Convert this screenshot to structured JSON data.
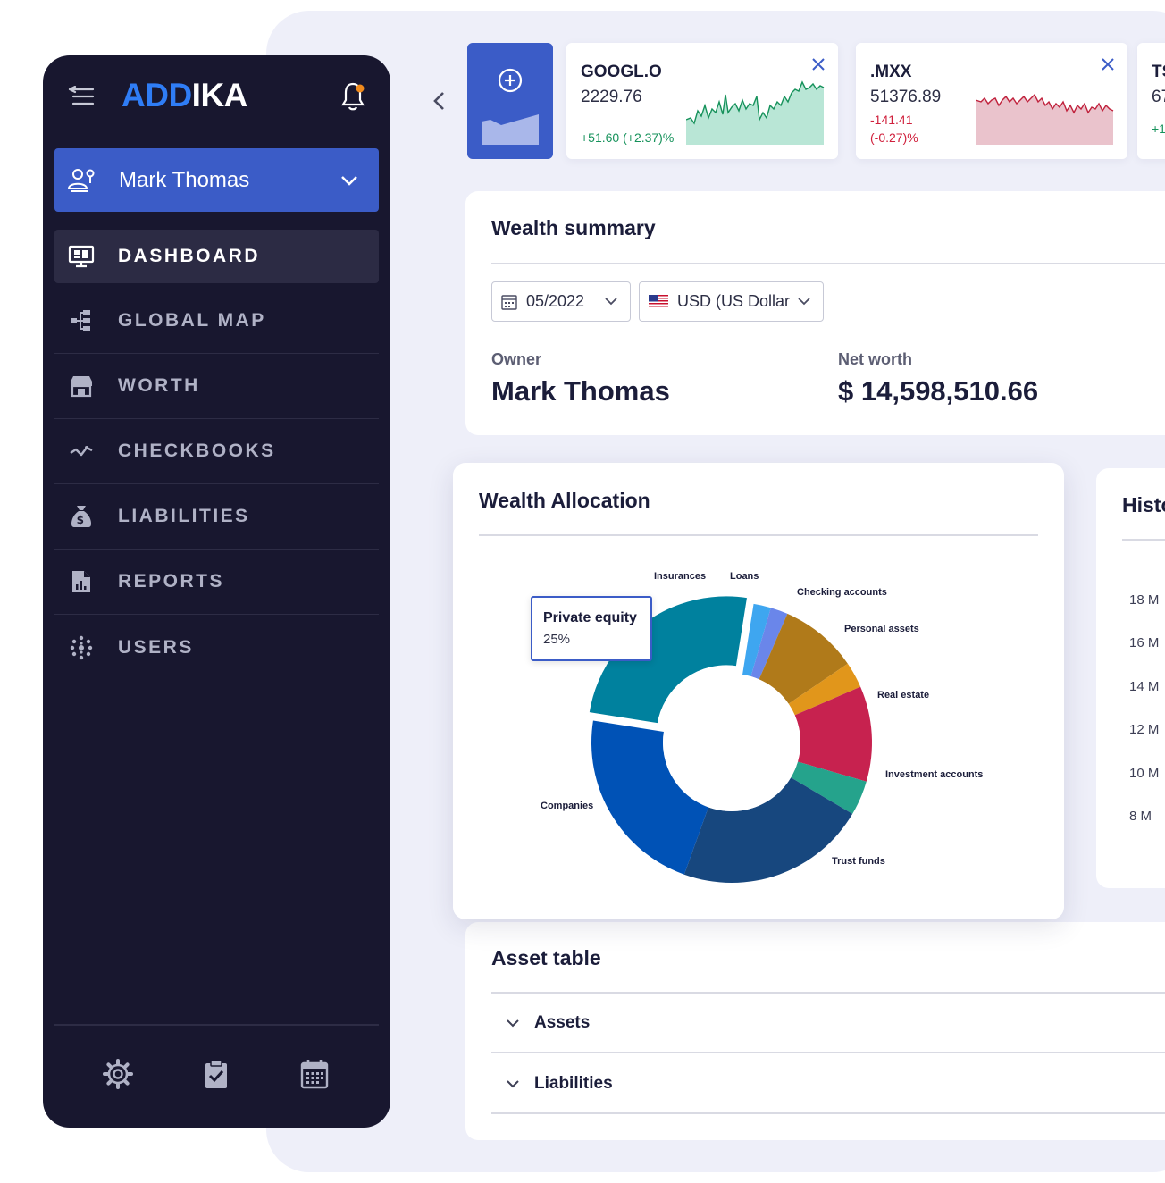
{
  "brand": {
    "logo_part1": "ADD",
    "logo_part2": "IKA",
    "accent": "#3b5cc7"
  },
  "user_select": {
    "name": "Mark Thomas"
  },
  "nav": [
    {
      "label": "DASHBOARD",
      "icon": "monitor-icon"
    },
    {
      "label": "GLOBAL MAP",
      "icon": "hierarchy-icon"
    },
    {
      "label": "WORTH",
      "icon": "store-icon"
    },
    {
      "label": "CHECKBOOKS",
      "icon": "trend-line-icon"
    },
    {
      "label": "LIABILITIES",
      "icon": "money-bag-icon"
    },
    {
      "label": "REPORTS",
      "icon": "report-file-icon"
    },
    {
      "label": "USERS",
      "icon": "dots-grid-icon"
    }
  ],
  "footer_icons": [
    "settings-gear-icon",
    "clipboard-check-icon",
    "calendar-icon"
  ],
  "tickers": [
    {
      "symbol": "GOOGL.O",
      "price": "2229.76",
      "change": "+51.60 (+2.37)%",
      "trend": "up",
      "color": "#16925b"
    },
    {
      "symbol": ".MXX",
      "price": "51376.89",
      "change_line1": "-141.41",
      "change_line2": "(-0.27)%",
      "trend": "down",
      "color": "#d0203c"
    },
    {
      "symbol": "TS",
      "price": "67",
      "change": "+1"
    }
  ],
  "wealth_summary": {
    "title": "Wealth summary",
    "date": "05/2022",
    "currency": "USD (US Dollar",
    "owner_label": "Owner",
    "owner": "Mark Thomas",
    "net_worth_label": "Net worth",
    "net_worth": "$ 14,598,510.66"
  },
  "wealth_allocation": {
    "title": "Wealth Allocation",
    "tooltip": {
      "label": "Private equity",
      "value": "25%"
    }
  },
  "chart_data": {
    "type": "pie",
    "title": "Wealth Allocation",
    "donut": true,
    "series": [
      {
        "name": "Private equity",
        "value": 25,
        "color": "#00819e"
      },
      {
        "name": "Insurances",
        "value": 2,
        "color": "#3ea6f0"
      },
      {
        "name": "Loans",
        "value": 2,
        "color": "#6a86ea"
      },
      {
        "name": "Checking accounts",
        "value": 9,
        "color": "#b07a1a"
      },
      {
        "name": "Personal assets",
        "value": 3,
        "color": "#e1961b"
      },
      {
        "name": "Real estate",
        "value": 11,
        "color": "#c7224f"
      },
      {
        "name": "Investment accounts",
        "value": 4,
        "color": "#25a38c"
      },
      {
        "name": "Trust funds",
        "value": 22,
        "color": "#17477e"
      },
      {
        "name": "Companies",
        "value": 22,
        "color": "#0052b6"
      }
    ]
  },
  "history": {
    "title": "Histo",
    "y_ticks": [
      "18 M",
      "16 M",
      "14 M",
      "12 M",
      "10 M",
      "8 M"
    ]
  },
  "asset_table": {
    "title": "Asset table",
    "rows": [
      "Assets",
      "Liabilities"
    ]
  }
}
